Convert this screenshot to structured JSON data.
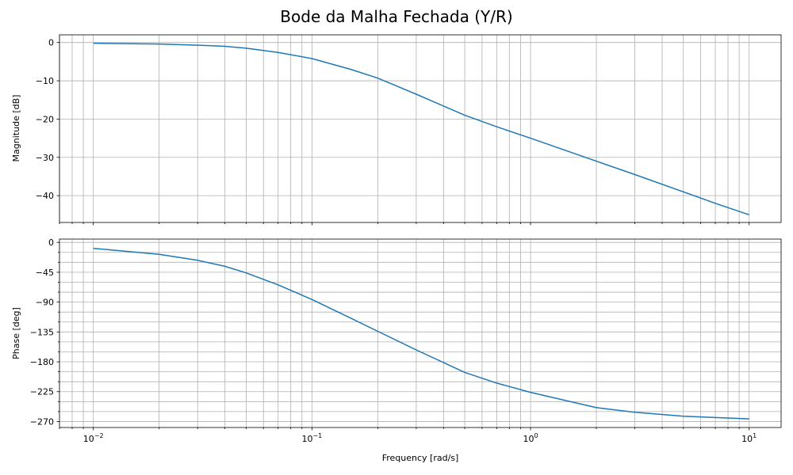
{
  "chart_data": [
    {
      "type": "line",
      "title": "Bode da Malha Fechada (Y/R)",
      "ylabel": "Magnitude [dB]",
      "xlabel": "",
      "xscale": "log",
      "xlim": [
        0.007,
        14
      ],
      "ylim": [
        -47,
        2
      ],
      "yticks": [
        0,
        -10,
        -20,
        -30,
        -40
      ],
      "ytick_labels": [
        "0",
        "−10",
        "−20",
        "−30",
        "−40"
      ],
      "grid": "on (major and minor)",
      "series": [
        {
          "x": [
            0.01,
            0.02,
            0.03,
            0.04,
            0.05,
            0.07,
            0.1,
            0.15,
            0.2,
            0.3,
            0.5,
            0.7,
            1,
            2,
            3,
            5,
            7,
            10
          ],
          "y": [
            -0.2,
            -0.4,
            -0.7,
            -1.0,
            -1.5,
            -2.6,
            -4.2,
            -7.0,
            -9.3,
            -13.5,
            -19.0,
            -22.0,
            -25.0,
            -31.0,
            -34.5,
            -39.0,
            -42.0,
            -45.0
          ]
        }
      ]
    },
    {
      "type": "line",
      "ylabel": "Phase [deg]",
      "xlabel": "Frequency [rad/s]",
      "xscale": "log",
      "xlim": [
        0.007,
        14
      ],
      "ylim": [
        -279,
        5
      ],
      "yticks": [
        0,
        -45,
        -90,
        -135,
        -180,
        -225,
        -270
      ],
      "ytick_labels": [
        "0",
        "−45",
        "−90",
        "−135",
        "−180",
        "−225",
        "−270"
      ],
      "xtick_bases": [
        "10",
        "10",
        "10",
        "10"
      ],
      "xtick_exponents": [
        "−2",
        "−1",
        "0",
        "1"
      ],
      "grid": "on (major and minor)",
      "series": [
        {
          "x": [
            0.01,
            0.02,
            0.03,
            0.04,
            0.05,
            0.07,
            0.1,
            0.15,
            0.2,
            0.3,
            0.5,
            0.7,
            1,
            2,
            3,
            5,
            7,
            10
          ],
          "y": [
            -9,
            -18,
            -27,
            -36,
            -46,
            -64,
            -86,
            -114,
            -134,
            -162,
            -196,
            -212,
            -226,
            -249,
            -256,
            -262,
            -264,
            -266
          ]
        }
      ]
    }
  ]
}
